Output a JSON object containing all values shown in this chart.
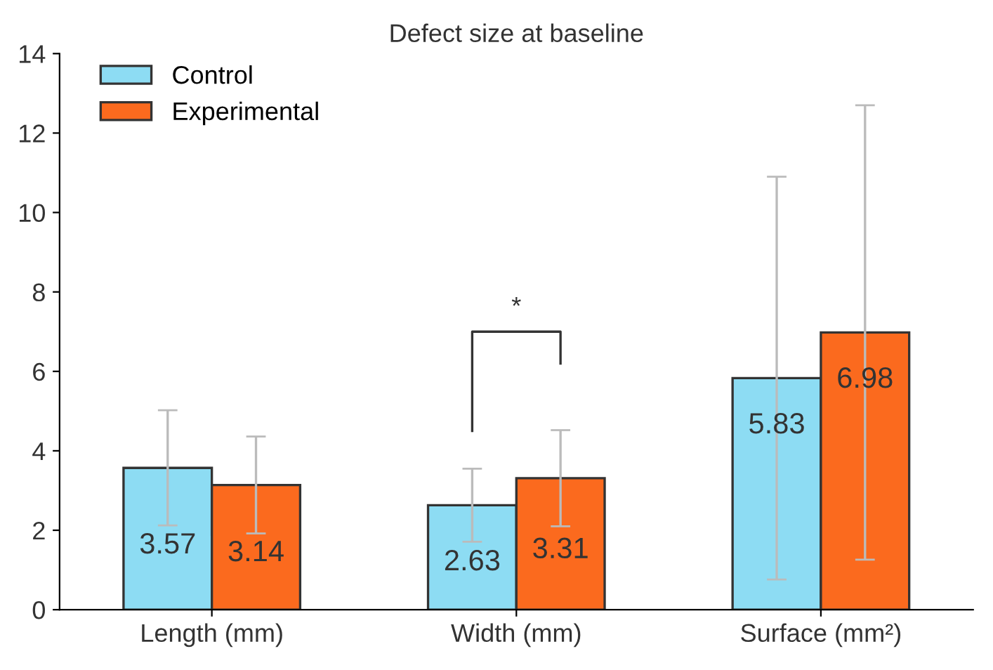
{
  "chart_data": {
    "type": "bar",
    "title": "Defect size at baseline",
    "categories": [
      "Length (mm)",
      "Width (mm)",
      "Surface (mm²)"
    ],
    "series": [
      {
        "name": "Control",
        "color": "#8ddcf3",
        "values": [
          3.57,
          2.63,
          5.83
        ],
        "errors": [
          1.45,
          0.92,
          5.07
        ]
      },
      {
        "name": "Experimental",
        "color": "#fb6a1e",
        "values": [
          3.14,
          3.31,
          6.98
        ],
        "errors": [
          1.22,
          1.21,
          5.72
        ]
      }
    ],
    "ylim": [
      0,
      14
    ],
    "yticks": [
      0,
      2,
      4,
      6,
      8,
      10,
      12,
      14
    ],
    "grid": false,
    "legend": "top left",
    "data_labels": true,
    "annotations": [
      "*"
    ]
  }
}
